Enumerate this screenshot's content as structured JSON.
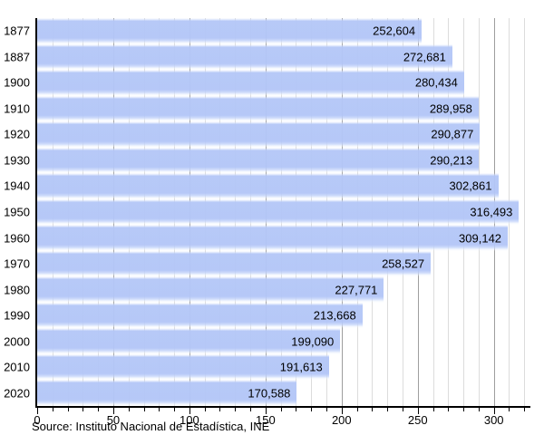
{
  "chart_data": {
    "type": "bar",
    "orientation": "horizontal",
    "title": "",
    "categories": [
      "1877",
      "1887",
      "1900",
      "1910",
      "1920",
      "1930",
      "1940",
      "1950",
      "1960",
      "1970",
      "1980",
      "1990",
      "2000",
      "2010",
      "2020"
    ],
    "values": [
      252604,
      272681,
      280434,
      289958,
      290877,
      290213,
      302861,
      316493,
      309142,
      258527,
      227771,
      213668,
      199090,
      191613,
      170588
    ],
    "value_labels": [
      "252,604",
      "272,681",
      "280,434",
      "289,958",
      "290,877",
      "290,213",
      "302,861",
      "316,493",
      "309,142",
      "258,527",
      "227,771",
      "213,668",
      "199,090",
      "191,613",
      "170,588"
    ],
    "x_axis": {
      "tick_labels": [
        "0",
        "50",
        "100",
        "150",
        "200",
        "250",
        "300"
      ],
      "tick_values": [
        0,
        50,
        100,
        150,
        200,
        250,
        300
      ],
      "minor_step": 10,
      "minor_max": 320,
      "max": 324,
      "values_divisor": 1000
    },
    "grid": "on",
    "legend": "none",
    "source_note": "Source: Instituto Nacional de Estadística, INE",
    "colors": {
      "bar": "#b3c6f7",
      "grid_minor": "#dcdcdc",
      "grid_major": "#9e9e9e",
      "axis": "#000000",
      "text": "#000000"
    }
  }
}
